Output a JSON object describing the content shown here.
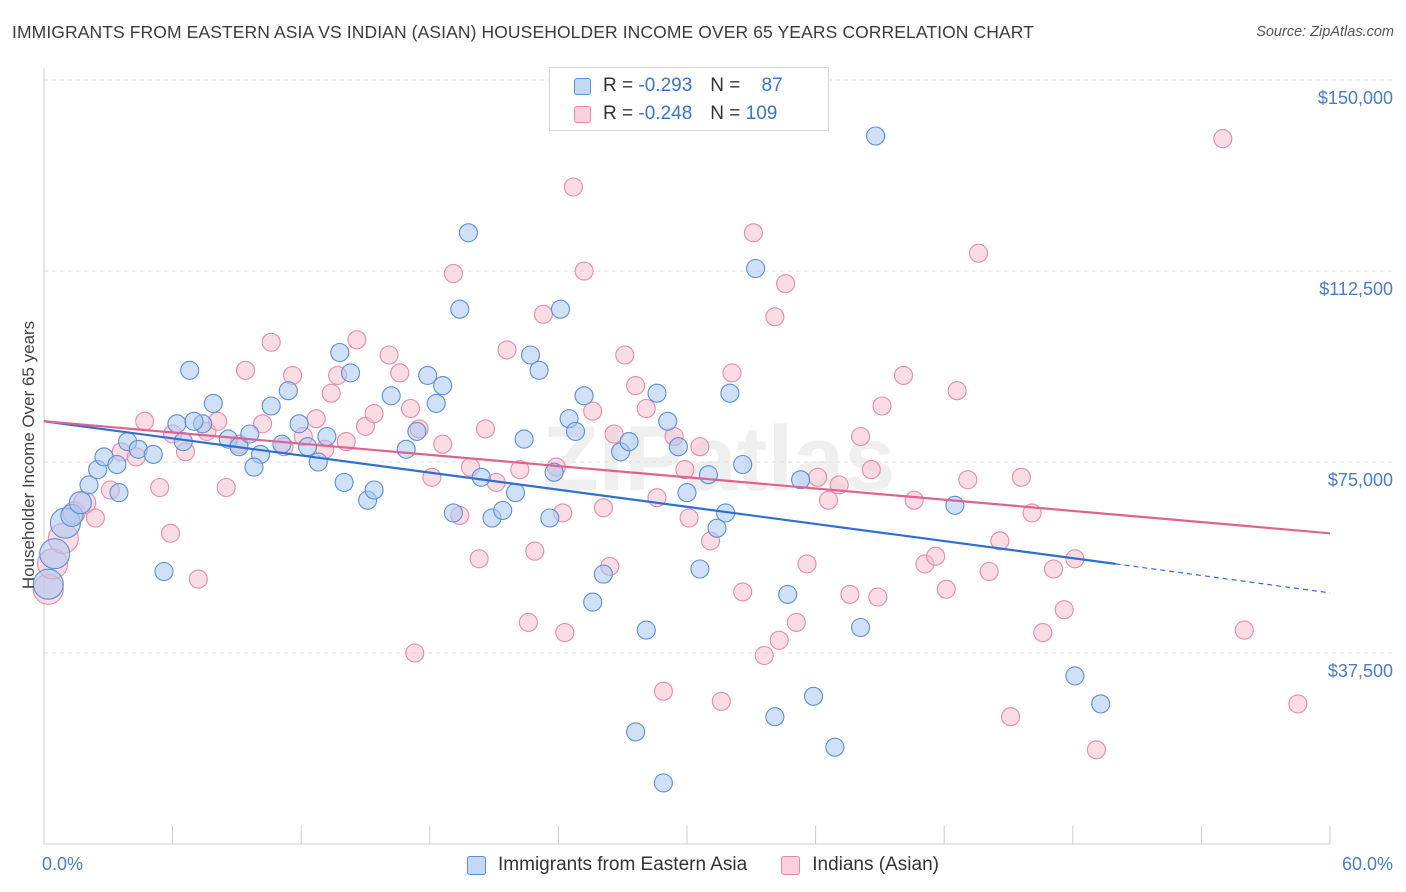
{
  "title": "IMMIGRANTS FROM EASTERN ASIA VS INDIAN (ASIAN) HOUSEHOLDER INCOME OVER 65 YEARS CORRELATION CHART",
  "source": "Source: ZipAtlas.com",
  "watermark": "ZIPatlas",
  "legend": {
    "series1": {
      "r_label": "R =",
      "r_value": "-0.293",
      "n_label": "N =",
      "n_value": "87"
    },
    "series2": {
      "r_label": "R =",
      "r_value": "-0.248",
      "n_label": "N =",
      "n_value": "109"
    }
  },
  "colors": {
    "blue_fill": "#aac8f0",
    "blue_stroke": "#5b8fd8",
    "blue_line": "#2f6fd0",
    "pink_fill": "#f6bfd0",
    "pink_stroke": "#e88aa8",
    "pink_line": "#e0628f",
    "grid": "#dddddd",
    "tick_text": "#4a7bd0"
  },
  "chart_data": {
    "type": "scatter",
    "title": "IMMIGRANTS FROM EASTERN ASIA VS INDIAN (ASIAN) HOUSEHOLDER INCOME OVER 65 YEARS CORRELATION CHART",
    "xlabel": "",
    "ylabel": "Householder Income Over 65 years",
    "xlim": [
      0,
      60
    ],
    "ylim": [
      0,
      155000
    ],
    "x_tick_labels": [
      "0.0%",
      "60.0%"
    ],
    "y_tick_values": [
      37500,
      75000,
      112500,
      150000
    ],
    "y_tick_labels": [
      "$37,500",
      "$75,000",
      "$112,500",
      "$150,000"
    ],
    "grid": true,
    "legend_position": "top-center",
    "series": [
      {
        "name": "Immigrants from Eastern Asia",
        "color": "#5b8fd8",
        "trend": {
          "x": [
            0,
            50
          ],
          "y": [
            83000,
            55000
          ],
          "dashed_to_x": 60,
          "dashed_to_y": 49300
        },
        "points": [
          [
            0.2,
            51000
          ],
          [
            0.5,
            57000
          ],
          [
            1.0,
            63000
          ],
          [
            1.3,
            64500
          ],
          [
            1.7,
            67000
          ],
          [
            2.1,
            70500
          ],
          [
            2.5,
            73500
          ],
          [
            2.8,
            76000
          ],
          [
            3.4,
            74500
          ],
          [
            3.9,
            79000
          ],
          [
            4.4,
            77500
          ],
          [
            5.1,
            76500
          ],
          [
            5.6,
            53500
          ],
          [
            6.2,
            82500
          ],
          [
            6.8,
            93000
          ],
          [
            7.4,
            82500
          ],
          [
            7.9,
            86500
          ],
          [
            8.6,
            79500
          ],
          [
            9.1,
            78000
          ],
          [
            9.6,
            80500
          ],
          [
            10.1,
            76500
          ],
          [
            10.6,
            86000
          ],
          [
            11.1,
            78500
          ],
          [
            11.4,
            89000
          ],
          [
            11.9,
            82500
          ],
          [
            12.3,
            78000
          ],
          [
            12.8,
            75000
          ],
          [
            13.2,
            80000
          ],
          [
            13.8,
            96500
          ],
          [
            14.3,
            92500
          ],
          [
            15.1,
            67500
          ],
          [
            15.4,
            69500
          ],
          [
            16.2,
            88000
          ],
          [
            16.9,
            77500
          ],
          [
            17.4,
            81000
          ],
          [
            17.9,
            92000
          ],
          [
            18.3,
            86500
          ],
          [
            18.6,
            90000
          ],
          [
            3.5,
            69000
          ],
          [
            19.1,
            65000
          ],
          [
            19.4,
            105000
          ],
          [
            19.8,
            120000
          ],
          [
            20.4,
            72000
          ],
          [
            20.9,
            64000
          ],
          [
            21.4,
            65500
          ],
          [
            22.0,
            69000
          ],
          [
            22.4,
            79500
          ],
          [
            22.7,
            96000
          ],
          [
            23.1,
            93000
          ],
          [
            23.6,
            64000
          ],
          [
            24.1,
            105000
          ],
          [
            24.5,
            83500
          ],
          [
            24.8,
            81000
          ],
          [
            25.2,
            88000
          ],
          [
            25.6,
            47500
          ],
          [
            26.1,
            53000
          ],
          [
            26.9,
            77000
          ],
          [
            27.3,
            79000
          ],
          [
            27.6,
            22000
          ],
          [
            28.1,
            42000
          ],
          [
            28.6,
            88500
          ],
          [
            29.1,
            83000
          ],
          [
            28.9,
            12000
          ],
          [
            30.0,
            69000
          ],
          [
            30.6,
            54000
          ],
          [
            31.0,
            72500
          ],
          [
            31.4,
            62000
          ],
          [
            31.8,
            65000
          ],
          [
            32.0,
            88500
          ],
          [
            32.6,
            74500
          ],
          [
            33.2,
            113000
          ],
          [
            34.1,
            25000
          ],
          [
            34.7,
            49000
          ],
          [
            35.3,
            71500
          ],
          [
            35.9,
            29000
          ],
          [
            36.9,
            19000
          ],
          [
            38.1,
            42500
          ],
          [
            38.8,
            139000
          ],
          [
            42.5,
            66500
          ],
          [
            48.1,
            33000
          ],
          [
            49.3,
            27500
          ],
          [
            9.8,
            74000
          ],
          [
            6.5,
            79000
          ],
          [
            14.0,
            71000
          ],
          [
            23.8,
            73000
          ],
          [
            29.6,
            78000
          ],
          [
            7.0,
            83000
          ]
        ]
      },
      {
        "name": "Indians (Asian)",
        "color": "#e88aa8",
        "trend": {
          "x": [
            0,
            60
          ],
          "y": [
            83000,
            61000
          ]
        },
        "points": [
          [
            0.2,
            50000
          ],
          [
            0.4,
            55000
          ],
          [
            0.9,
            60000
          ],
          [
            1.4,
            65000
          ],
          [
            1.9,
            67000
          ],
          [
            2.4,
            64000
          ],
          [
            3.1,
            69500
          ],
          [
            3.6,
            77000
          ],
          [
            4.3,
            76000
          ],
          [
            4.7,
            83000
          ],
          [
            5.4,
            70000
          ],
          [
            6.0,
            80500
          ],
          [
            6.6,
            77000
          ],
          [
            7.2,
            52000
          ],
          [
            7.6,
            81000
          ],
          [
            8.1,
            83000
          ],
          [
            8.5,
            70000
          ],
          [
            9.1,
            78500
          ],
          [
            9.4,
            93000
          ],
          [
            10.2,
            82500
          ],
          [
            10.6,
            98500
          ],
          [
            11.2,
            78000
          ],
          [
            11.6,
            92000
          ],
          [
            12.1,
            80000
          ],
          [
            12.7,
            83500
          ],
          [
            13.1,
            77500
          ],
          [
            13.7,
            92000
          ],
          [
            14.1,
            79000
          ],
          [
            14.6,
            99000
          ],
          [
            15.0,
            82000
          ],
          [
            15.4,
            84500
          ],
          [
            16.1,
            96000
          ],
          [
            16.6,
            92500
          ],
          [
            17.1,
            85500
          ],
          [
            17.5,
            81500
          ],
          [
            18.1,
            72000
          ],
          [
            18.6,
            78500
          ],
          [
            19.1,
            112000
          ],
          [
            19.4,
            64500
          ],
          [
            19.9,
            74000
          ],
          [
            20.6,
            81500
          ],
          [
            21.1,
            71000
          ],
          [
            21.6,
            97000
          ],
          [
            22.2,
            73500
          ],
          [
            22.6,
            43500
          ],
          [
            22.9,
            57500
          ],
          [
            23.3,
            104000
          ],
          [
            23.9,
            74000
          ],
          [
            24.2,
            65000
          ],
          [
            24.7,
            129000
          ],
          [
            25.2,
            112500
          ],
          [
            25.6,
            85000
          ],
          [
            26.1,
            66000
          ],
          [
            26.6,
            80500
          ],
          [
            27.1,
            96000
          ],
          [
            27.6,
            90000
          ],
          [
            28.1,
            85500
          ],
          [
            28.6,
            68000
          ],
          [
            28.9,
            30000
          ],
          [
            29.4,
            80000
          ],
          [
            29.9,
            73500
          ],
          [
            30.1,
            64000
          ],
          [
            30.6,
            78000
          ],
          [
            31.1,
            59500
          ],
          [
            31.6,
            28000
          ],
          [
            32.1,
            92500
          ],
          [
            32.6,
            49500
          ],
          [
            33.1,
            120000
          ],
          [
            33.6,
            37000
          ],
          [
            34.1,
            103500
          ],
          [
            34.6,
            110000
          ],
          [
            35.1,
            43500
          ],
          [
            35.6,
            55000
          ],
          [
            36.1,
            72000
          ],
          [
            36.6,
            67500
          ],
          [
            37.1,
            70500
          ],
          [
            37.6,
            49000
          ],
          [
            38.1,
            80000
          ],
          [
            38.6,
            73500
          ],
          [
            39.1,
            86000
          ],
          [
            40.1,
            92000
          ],
          [
            40.6,
            67500
          ],
          [
            41.1,
            55000
          ],
          [
            41.6,
            56500
          ],
          [
            42.1,
            50000
          ],
          [
            42.6,
            89000
          ],
          [
            43.1,
            71500
          ],
          [
            43.6,
            116000
          ],
          [
            44.1,
            53500
          ],
          [
            44.6,
            59500
          ],
          [
            45.1,
            25000
          ],
          [
            45.6,
            72000
          ],
          [
            46.1,
            65000
          ],
          [
            46.6,
            41500
          ],
          [
            47.1,
            54000
          ],
          [
            47.6,
            46000
          ],
          [
            48.1,
            56000
          ],
          [
            49.1,
            18500
          ],
          [
            55.0,
            138500
          ],
          [
            56.0,
            42000
          ],
          [
            58.5,
            27500
          ],
          [
            24.3,
            41500
          ],
          [
            17.3,
            37500
          ],
          [
            26.4,
            54500
          ],
          [
            34.3,
            40000
          ],
          [
            5.9,
            61000
          ],
          [
            13.4,
            88500
          ],
          [
            20.3,
            56000
          ],
          [
            38.9,
            48500
          ]
        ]
      }
    ]
  }
}
